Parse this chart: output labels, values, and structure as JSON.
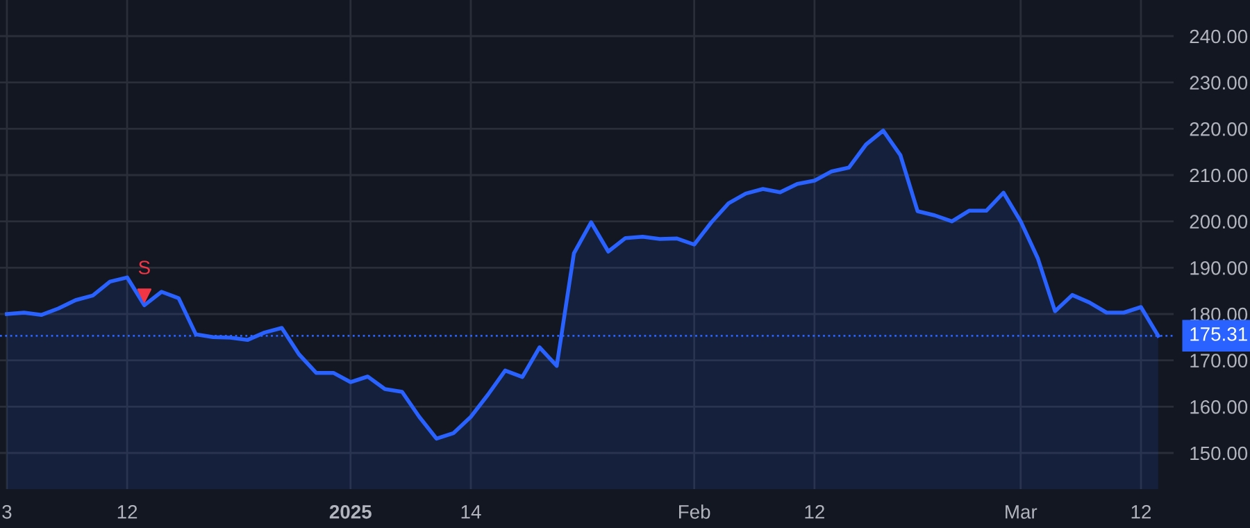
{
  "chart_data": {
    "type": "area",
    "categories": [
      "3",
      null,
      null,
      null,
      null,
      null,
      null,
      "12",
      null,
      null,
      null,
      null,
      null,
      null,
      null,
      null,
      null,
      null,
      null,
      null,
      "2025",
      null,
      null,
      null,
      null,
      null,
      null,
      "14",
      null,
      null,
      null,
      null,
      null,
      null,
      null,
      null,
      null,
      null,
      null,
      null,
      "Feb",
      null,
      null,
      null,
      null,
      null,
      null,
      "12",
      null,
      null,
      null,
      null,
      null,
      null,
      null,
      null,
      null,
      null,
      null,
      "Mar",
      null,
      null,
      null,
      null,
      null,
      null,
      "12",
      null
    ],
    "series": [
      {
        "color": "#2962ff",
        "values": [
          180.0,
          180.3,
          179.8,
          181.2,
          183.0,
          184.0,
          187.0,
          187.9,
          181.9,
          184.8,
          183.4,
          175.6,
          175.0,
          174.9,
          174.4,
          176.0,
          177.0,
          171.3,
          167.3,
          167.3,
          165.3,
          166.5,
          163.8,
          163.2,
          157.8,
          153.1,
          154.3,
          157.8,
          162.6,
          167.8,
          166.4,
          172.8,
          168.8,
          193.1,
          199.8,
          193.5,
          196.4,
          196.7,
          196.2,
          196.3,
          195.0,
          199.8,
          203.9,
          206.0,
          207.0,
          206.3,
          208.1,
          208.8,
          210.8,
          211.6,
          216.6,
          219.6,
          214.3,
          202.2,
          201.3,
          200.0,
          202.3,
          202.3,
          206.2,
          200.0,
          192.0,
          180.6,
          184.1,
          182.5,
          180.3,
          180.3,
          181.5,
          175.31
        ]
      },
      {
        "type": "scatter",
        "color": "#f23645",
        "marker": "triangle",
        "values": [
          null,
          null,
          null,
          null,
          null,
          null,
          null,
          null,
          184.0,
          null,
          null,
          null,
          null,
          null,
          null,
          null,
          null,
          null,
          null,
          null,
          null,
          null,
          null,
          null,
          null,
          null,
          null,
          null,
          null,
          null,
          null,
          null,
          null,
          null,
          null,
          null,
          null,
          null,
          null,
          null,
          null,
          null,
          null,
          null,
          null,
          null,
          null,
          null,
          null,
          null,
          null,
          null,
          null,
          null,
          null,
          null,
          null,
          null,
          null,
          null,
          null,
          null,
          null,
          null,
          null,
          null,
          null,
          null
        ],
        "value_labels": [
          null,
          null,
          null,
          null,
          null,
          null,
          null,
          null,
          "S",
          null,
          null,
          null,
          null,
          null,
          null,
          null,
          null,
          null,
          null,
          null,
          null,
          null,
          null,
          null,
          null,
          null,
          null,
          null,
          null,
          null,
          null,
          null,
          null,
          null,
          null,
          null,
          null,
          null,
          null,
          null,
          null,
          null,
          null,
          null,
          null,
          null,
          null,
          null,
          null,
          null,
          null,
          null,
          null,
          null,
          null,
          null,
          null,
          null,
          null,
          null,
          null,
          null,
          null,
          null,
          null,
          null,
          null,
          null
        ]
      }
    ],
    "ylim": [
      142.2,
      247.8
    ],
    "yticks": [
      {
        "value": 150,
        "label": "150.00"
      },
      {
        "value": 160,
        "label": "160.00"
      },
      {
        "value": 170,
        "label": "170.00"
      },
      {
        "value": 180,
        "label": "180.00"
      },
      {
        "value": 190,
        "label": "190.00"
      },
      {
        "value": 200,
        "label": "200.00"
      },
      {
        "value": 210,
        "label": "210.00"
      },
      {
        "value": 220,
        "label": "220.00"
      },
      {
        "value": 230,
        "label": "230.00"
      },
      {
        "value": 240,
        "label": "240.00"
      }
    ],
    "ref_lines": [
      {
        "axis": "y",
        "value": 175.31,
        "label": "175.31",
        "color": "#2962ff",
        "line_style": "dotted"
      }
    ],
    "grid": true,
    "legend": false
  }
}
